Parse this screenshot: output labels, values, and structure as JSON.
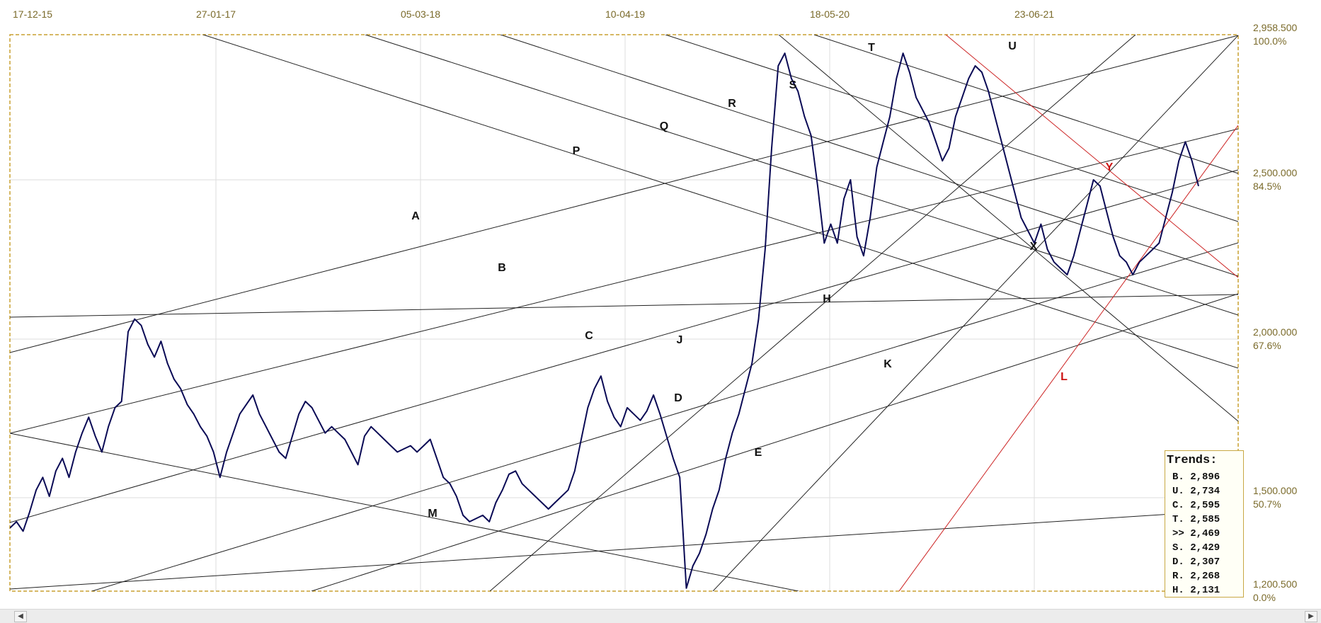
{
  "chart_data": {
    "type": "line",
    "x_labels": [
      "17-12-15",
      "27-01-17",
      "05-03-18",
      "10-04-19",
      "18-05-20",
      "23-06-21"
    ],
    "y_right_labels": [
      {
        "value": "2,958.500",
        "pct": "100.0%"
      },
      {
        "value": "2,500.000",
        "pct": "84.5%"
      },
      {
        "value": "2,000.000",
        "pct": "67.6%"
      },
      {
        "value": "1,500.000",
        "pct": "50.7%"
      },
      {
        "value": "1,200.500",
        "pct": "0.0%"
      }
    ],
    "ylim": [
      1200.5,
      2958.5
    ],
    "grid": true,
    "series": [
      {
        "values": [
          1400,
          1420,
          1390,
          1450,
          1520,
          1560,
          1500,
          1580,
          1620,
          1560,
          1640,
          1700,
          1750,
          1690,
          1640,
          1720,
          1780,
          1800,
          2020,
          2060,
          2040,
          1980,
          1940,
          1990,
          1920,
          1870,
          1840,
          1790,
          1760,
          1720,
          1690,
          1640,
          1560,
          1640,
          1700,
          1760,
          1790,
          1820,
          1760,
          1720,
          1680,
          1640,
          1620,
          1690,
          1760,
          1800,
          1780,
          1740,
          1700,
          1720,
          1700,
          1680,
          1640,
          1600,
          1690,
          1720,
          1700,
          1680,
          1660,
          1640,
          1650,
          1660,
          1640,
          1660,
          1680,
          1620,
          1560,
          1540,
          1500,
          1440,
          1420,
          1430,
          1440,
          1420,
          1480,
          1520,
          1570,
          1580,
          1540,
          1520,
          1500,
          1480,
          1460,
          1480,
          1500,
          1520,
          1580,
          1680,
          1780,
          1840,
          1880,
          1800,
          1750,
          1720,
          1780,
          1760,
          1740,
          1770,
          1820,
          1760,
          1690,
          1620,
          1560,
          1210,
          1280,
          1320,
          1380,
          1460,
          1520,
          1620,
          1700,
          1760,
          1840,
          1920,
          2060,
          2280,
          2600,
          2860,
          2900,
          2820,
          2780,
          2700,
          2640,
          2480,
          2300,
          2360,
          2300,
          2440,
          2500,
          2320,
          2260,
          2380,
          2540,
          2620,
          2700,
          2820,
          2900,
          2840,
          2760,
          2720,
          2680,
          2620,
          2560,
          2600,
          2700,
          2760,
          2820,
          2860,
          2840,
          2780,
          2700,
          2620,
          2540,
          2460,
          2380,
          2340,
          2300,
          2360,
          2280,
          2240,
          2220,
          2200,
          2260,
          2340,
          2420,
          2500,
          2480,
          2400,
          2320,
          2260,
          2240,
          2200,
          2240,
          2260,
          2280,
          2300,
          2380,
          2460,
          2560,
          2620,
          2560,
          2480
        ]
      }
    ],
    "trendline_labels": [
      "A",
      "B",
      "C",
      "D",
      "E",
      "H",
      "J",
      "K",
      "L",
      "M",
      "P",
      "Q",
      "R",
      "S",
      "T",
      "U",
      "X",
      "Y"
    ]
  },
  "trends": {
    "title": "Trends:",
    "rows": [
      "B. 2,896",
      "U. 2,734",
      "C. 2,595",
      "T. 2,585",
      ">> 2,469",
      "S. 2,429",
      "D. 2,307",
      "R. 2,268",
      "H. 2,131"
    ]
  },
  "colors": {
    "price_line": "#0a0a55",
    "trend_line": "#222222",
    "red_trend": "#cc2222",
    "frame": "#c8a030",
    "grid": "#dddddd"
  },
  "scrollbar": {
    "left_icon": "arrow-left-icon",
    "right_icon": "arrow-right-icon",
    "left_glyph": "◀",
    "right_glyph": "▶"
  }
}
